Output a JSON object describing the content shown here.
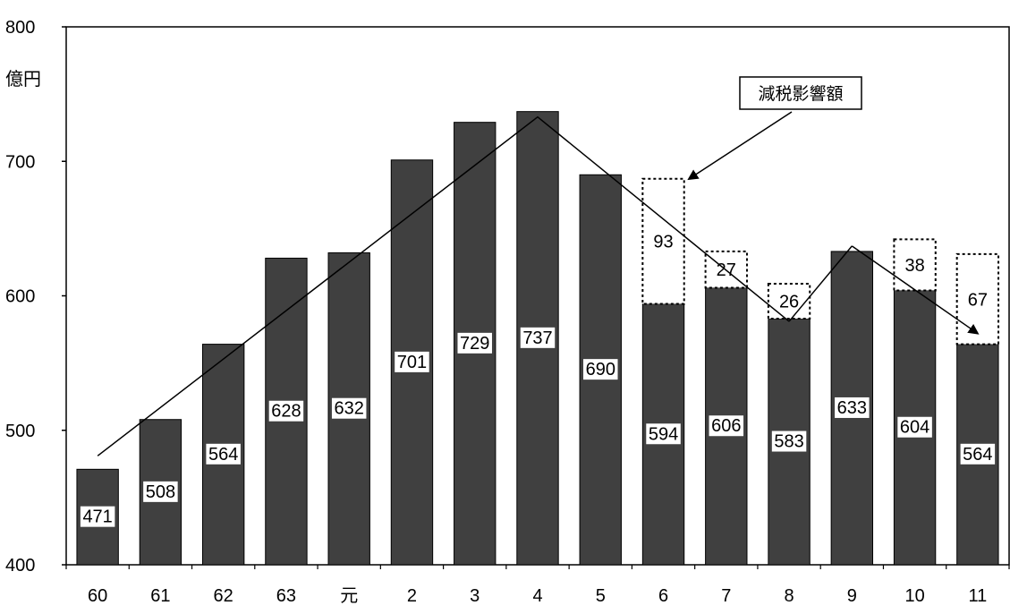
{
  "chart_data": {
    "type": "bar",
    "categories": [
      "60",
      "61",
      "62",
      "63",
      "元",
      "2",
      "3",
      "4",
      "5",
      "6",
      "7",
      "8",
      "9",
      "10",
      "11"
    ],
    "series": [
      {
        "values": [
          471,
          508,
          564,
          628,
          632,
          701,
          729,
          737,
          690,
          594,
          606,
          583,
          633,
          604,
          564
        ],
        "color": "#404040"
      },
      {
        "values": [
          null,
          null,
          null,
          null,
          null,
          null,
          null,
          null,
          null,
          93,
          27,
          26,
          null,
          38,
          67
        ],
        "style": "dotted-outline"
      }
    ],
    "y_unit": "億円",
    "ylim": [
      400,
      800
    ],
    "yticks": [
      400,
      500,
      600,
      700,
      800
    ],
    "annotation": "減税影響額",
    "trend_lines": [
      {
        "points": [
          [
            "60",
            481
          ],
          [
            "4",
            733
          ],
          [
            "8",
            581
          ],
          [
            "9",
            637
          ],
          [
            "11",
            572
          ]
        ]
      }
    ],
    "grid": false
  }
}
